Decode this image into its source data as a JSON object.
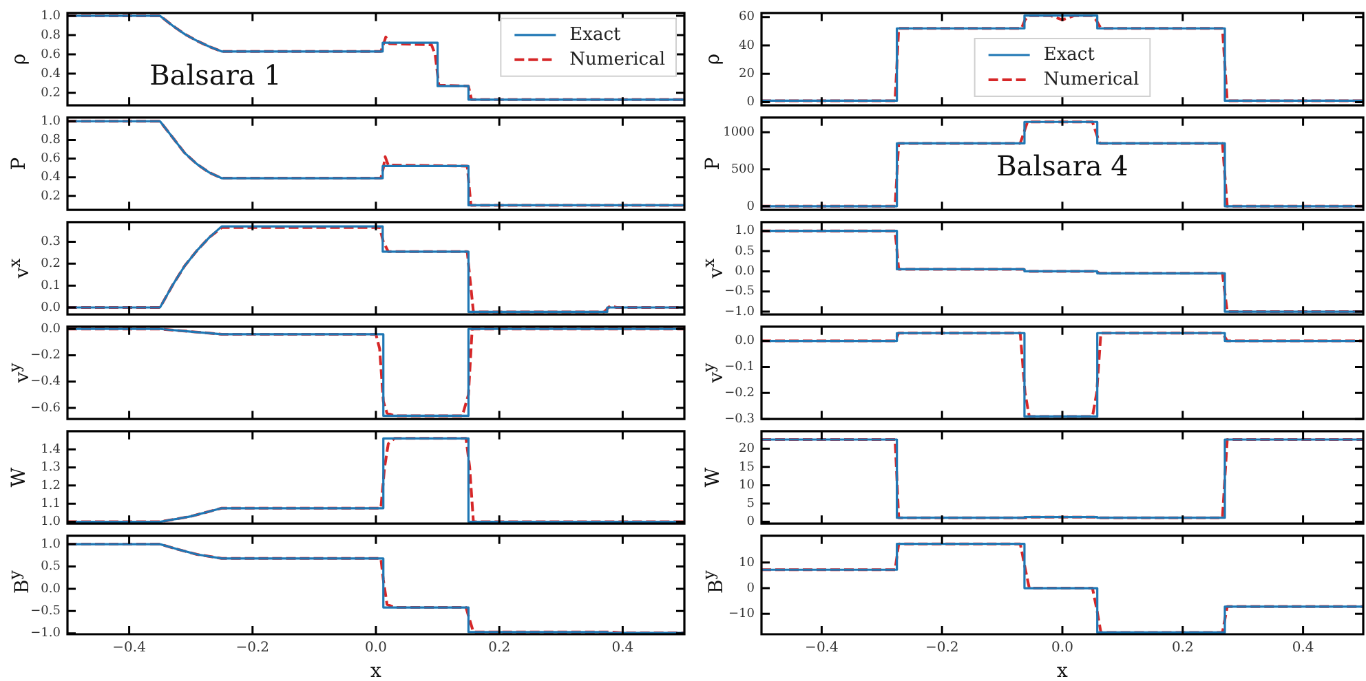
{
  "chart_data": [
    {
      "type": "line",
      "ylabel": "ρ",
      "annotations": [
        "Balsara 1"
      ],
      "legend": "top right",
      "tick_labels": "y",
      "xlim": [
        -0.5,
        0.5
      ],
      "xticks": [
        {
          "value": -0.4,
          "label": null
        },
        {
          "value": -0.2,
          "label": null
        },
        {
          "value": 0,
          "label": null
        },
        {
          "value": 0.2,
          "label": null
        },
        {
          "value": 0.4,
          "label": null
        }
      ],
      "ylim": [
        0.07,
        1.03
      ],
      "yticks": [
        0.2,
        0.4,
        0.6,
        0.8,
        {
          "value": 1,
          "label": "1.0"
        }
      ],
      "series": [
        {
          "name": "Exact",
          "color": "#1f77b4",
          "line_style": "solid",
          "x": [
            -0.5,
            -0.35,
            -0.33,
            -0.31,
            -0.29,
            -0.27,
            -0.25,
            0.011,
            0.011,
            0.1,
            0.1,
            0.15,
            0.15,
            0.5
          ],
          "values": [
            1,
            1,
            0.9,
            0.81,
            0.74,
            0.68,
            0.63,
            0.63,
            0.72,
            0.72,
            0.27,
            0.27,
            0.13,
            0.13
          ]
        },
        {
          "name": "Numerical",
          "color": "#d62728",
          "line_style": "dashed",
          "x": [
            -0.5,
            -0.35,
            -0.33,
            -0.31,
            -0.29,
            -0.27,
            -0.25,
            0.008,
            0.012,
            0.016,
            0.022,
            0.09,
            0.096,
            0.102,
            0.15,
            0.155,
            0.5
          ],
          "values": [
            1,
            1,
            0.9,
            0.81,
            0.74,
            0.68,
            0.63,
            0.63,
            0.7,
            0.78,
            0.71,
            0.7,
            0.6,
            0.28,
            0.27,
            0.13,
            0.13
          ]
        }
      ]
    },
    {
      "type": "line",
      "ylabel": "P",
      "tick_labels": "y",
      "xlim": [
        -0.5,
        0.5
      ],
      "xticks": [
        {
          "value": -0.4,
          "label": null
        },
        {
          "value": -0.2,
          "label": null
        },
        {
          "value": 0,
          "label": null
        },
        {
          "value": 0.2,
          "label": null
        },
        {
          "value": 0.4,
          "label": null
        }
      ],
      "ylim": [
        0.05,
        1.04
      ],
      "yticks": [
        0.2,
        0.4,
        0.6,
        0.8,
        {
          "value": 1,
          "label": "1.0"
        }
      ],
      "series": [
        {
          "color": "#1f77b4",
          "line_style": "solid",
          "x": [
            -0.5,
            -0.35,
            -0.33,
            -0.31,
            -0.29,
            -0.27,
            -0.25,
            0.011,
            0.011,
            0.15,
            0.15,
            0.5
          ],
          "values": [
            1,
            1,
            0.83,
            0.66,
            0.54,
            0.45,
            0.39,
            0.39,
            0.52,
            0.52,
            0.1,
            0.1
          ]
        },
        {
          "color": "#d62728",
          "line_style": "dashed",
          "x": [
            -0.5,
            -0.35,
            -0.33,
            -0.31,
            -0.29,
            -0.27,
            -0.25,
            0.008,
            0.012,
            0.015,
            0.02,
            0.148,
            0.154,
            0.5
          ],
          "values": [
            1,
            1,
            0.83,
            0.66,
            0.54,
            0.45,
            0.39,
            0.39,
            0.5,
            0.62,
            0.53,
            0.52,
            0.1,
            0.1
          ]
        }
      ]
    },
    {
      "type": "line",
      "ylabel": "v$^{x}$",
      "tick_labels": "y",
      "xlim": [
        -0.5,
        0.5
      ],
      "xticks": [
        {
          "value": -0.4,
          "label": null
        },
        {
          "value": -0.2,
          "label": null
        },
        {
          "value": 0,
          "label": null
        },
        {
          "value": 0.2,
          "label": null
        },
        {
          "value": 0.4,
          "label": null
        }
      ],
      "ylim": [
        -0.032,
        0.39
      ],
      "yticks": [
        {
          "value": 0,
          "label": "0.0"
        },
        0.1,
        0.2,
        0.3
      ],
      "series": [
        {
          "color": "#1f77b4",
          "line_style": "solid",
          "x": [
            -0.5,
            -0.35,
            -0.33,
            -0.31,
            -0.29,
            -0.27,
            -0.25,
            0.011,
            0.011,
            0.15,
            0.15,
            0.375,
            0.375,
            0.5
          ],
          "values": [
            0,
            0,
            0.1,
            0.19,
            0.26,
            0.32,
            0.37,
            0.37,
            0.255,
            0.255,
            -0.02,
            -0.02,
            0,
            0
          ]
        },
        {
          "color": "#d62728",
          "line_style": "dashed",
          "x": [
            -0.5,
            -0.35,
            -0.33,
            -0.31,
            -0.29,
            -0.27,
            -0.25,
            0.006,
            0.012,
            0.02,
            0.148,
            0.158,
            0.37,
            0.38,
            0.39,
            0.5
          ],
          "values": [
            0,
            0,
            0.1,
            0.19,
            0.26,
            0.32,
            0.365,
            0.365,
            0.3,
            0.255,
            0.255,
            -0.02,
            -0.02,
            0.008,
            0,
            0
          ]
        }
      ]
    },
    {
      "type": "line",
      "ylabel": "v$^{y}$",
      "tick_labels": "y",
      "xlim": [
        -0.5,
        0.5
      ],
      "xticks": [
        {
          "value": -0.4,
          "label": null
        },
        {
          "value": -0.2,
          "label": null
        },
        {
          "value": 0,
          "label": null
        },
        {
          "value": 0.2,
          "label": null
        },
        {
          "value": 0.4,
          "label": null
        }
      ],
      "ylim": [
        -0.685,
        0.018
      ],
      "yticks": [
        {
          "value": -0.6,
          "label": "−0.6"
        },
        {
          "value": -0.4,
          "label": "−0.4"
        },
        {
          "value": -0.2,
          "label": "−0.2"
        },
        {
          "value": 0,
          "label": "0.0"
        }
      ],
      "series": [
        {
          "color": "#1f77b4",
          "line_style": "solid",
          "x": [
            -0.5,
            -0.35,
            -0.3,
            -0.25,
            0.012,
            0.012,
            0.15,
            0.15,
            0.5
          ],
          "values": [
            0,
            0,
            -0.02,
            -0.04,
            -0.04,
            -0.66,
            -0.66,
            0,
            0
          ]
        },
        {
          "color": "#d62728",
          "line_style": "dashed",
          "x": [
            -0.5,
            -0.35,
            -0.3,
            -0.25,
            0.0,
            0.006,
            0.012,
            0.018,
            0.03,
            0.14,
            0.15,
            0.156,
            0.5
          ],
          "values": [
            0,
            0,
            -0.02,
            -0.04,
            -0.04,
            -0.15,
            -0.55,
            -0.64,
            -0.66,
            -0.66,
            -0.5,
            0,
            0
          ]
        }
      ]
    },
    {
      "type": "line",
      "ylabel": "W",
      "tick_labels": "y",
      "xlim": [
        -0.5,
        0.5
      ],
      "xticks": [
        {
          "value": -0.4,
          "label": null
        },
        {
          "value": -0.2,
          "label": null
        },
        {
          "value": 0,
          "label": null
        },
        {
          "value": 0.2,
          "label": null
        },
        {
          "value": 0.4,
          "label": null
        }
      ],
      "ylim": [
        0.99,
        1.5
      ],
      "yticks": [
        {
          "value": 1,
          "label": "1.0"
        },
        1.1,
        1.2,
        1.3,
        1.4
      ],
      "series": [
        {
          "color": "#1f77b4",
          "line_style": "solid",
          "x": [
            -0.5,
            -0.35,
            -0.3,
            -0.25,
            0.012,
            0.012,
            0.15,
            0.15,
            0.5
          ],
          "values": [
            1,
            1,
            1.03,
            1.075,
            1.075,
            1.46,
            1.46,
            1,
            1
          ]
        },
        {
          "color": "#d62728",
          "line_style": "dashed",
          "x": [
            -0.5,
            -0.35,
            -0.3,
            -0.25,
            0.008,
            0.014,
            0.02,
            0.03,
            0.146,
            0.152,
            0.158,
            0.5
          ],
          "values": [
            1,
            1,
            1.03,
            1.075,
            1.075,
            1.3,
            1.43,
            1.46,
            1.46,
            1.3,
            1,
            1
          ]
        }
      ]
    },
    {
      "type": "line",
      "ylabel": "B$^{y}$",
      "xlabel": "x",
      "xlim": [
        -0.5,
        0.5
      ],
      "xticks": [
        {
          "value": -0.4,
          "label": "−0.4"
        },
        {
          "value": -0.2,
          "label": "−0.2"
        },
        {
          "value": 0,
          "label": "0.0"
        },
        {
          "value": 0.2,
          "label": "0.2"
        },
        {
          "value": 0.4,
          "label": "0.4"
        }
      ],
      "ylim": [
        -1.02,
        1.19
      ],
      "yticks": [
        {
          "value": -1,
          "label": "−1.0"
        },
        {
          "value": -0.5,
          "label": "−0.5"
        },
        {
          "value": 0,
          "label": "0.0"
        },
        0.5,
        {
          "value": 1,
          "label": "1.0"
        }
      ],
      "series": [
        {
          "color": "#1f77b4",
          "line_style": "solid",
          "x": [
            -0.5,
            -0.35,
            -0.32,
            -0.29,
            -0.25,
            0.012,
            0.012,
            0.15,
            0.15,
            0.375,
            0.375,
            0.5
          ],
          "values": [
            1,
            1,
            0.88,
            0.77,
            0.68,
            0.68,
            -0.42,
            -0.42,
            -0.97,
            -0.97,
            -0.99,
            -0.99
          ]
        },
        {
          "color": "#d62728",
          "line_style": "dashed",
          "x": [
            -0.5,
            -0.35,
            -0.32,
            -0.29,
            -0.25,
            0.008,
            0.012,
            0.018,
            0.03,
            0.146,
            0.152,
            0.158,
            0.38,
            0.4,
            0.5
          ],
          "values": [
            1,
            1,
            0.88,
            0.77,
            0.68,
            0.68,
            0.2,
            -0.35,
            -0.42,
            -0.42,
            -0.7,
            -0.97,
            -0.97,
            -0.99,
            -0.99
          ]
        }
      ]
    },
    {
      "type": "line",
      "ylabel": "ρ",
      "legend": "center",
      "tick_labels": "y",
      "xlim": [
        -0.5,
        0.5
      ],
      "xticks": [
        {
          "value": -0.4,
          "label": null
        },
        {
          "value": -0.2,
          "label": null
        },
        {
          "value": 0,
          "label": null
        },
        {
          "value": 0.2,
          "label": null
        },
        {
          "value": 0.4,
          "label": null
        }
      ],
      "ylim": [
        -2.3,
        62.9
      ],
      "yticks": [
        0,
        20,
        40,
        60
      ],
      "series": [
        {
          "name": "Exact",
          "color": "#1f77b4",
          "line_style": "solid",
          "x": [
            -0.5,
            -0.275,
            -0.275,
            -0.063,
            -0.063,
            0.058,
            0.058,
            0.27,
            0.27,
            0.5
          ],
          "values": [
            1,
            1,
            52,
            52,
            61,
            61,
            52,
            52,
            1,
            1
          ]
        },
        {
          "name": "Numerical",
          "color": "#d62728",
          "line_style": "dashed",
          "x": [
            -0.5,
            -0.278,
            -0.272,
            -0.068,
            -0.062,
            -0.055,
            -0.02,
            0,
            0.02,
            0.05,
            0.056,
            0.064,
            0.266,
            0.274,
            0.5
          ],
          "values": [
            1,
            1,
            52,
            52,
            58,
            61,
            61,
            58,
            61,
            61,
            58,
            52,
            52,
            1,
            1
          ]
        }
      ]
    },
    {
      "type": "line",
      "ylabel": "P",
      "annotations": [
        "Balsara 4"
      ],
      "tick_labels": "y",
      "xlim": [
        -0.5,
        0.5
      ],
      "xticks": [
        {
          "value": -0.4,
          "label": null
        },
        {
          "value": -0.2,
          "label": null
        },
        {
          "value": 0,
          "label": null
        },
        {
          "value": 0.2,
          "label": null
        },
        {
          "value": 0.4,
          "label": null
        }
      ],
      "ylim": [
        -50,
        1200
      ],
      "yticks": [
        0,
        500,
        1000
      ],
      "series": [
        {
          "color": "#1f77b4",
          "line_style": "solid",
          "x": [
            -0.5,
            -0.275,
            -0.275,
            -0.063,
            -0.063,
            0.058,
            0.058,
            0.27,
            0.27,
            0.5
          ],
          "values": [
            0,
            0,
            850,
            850,
            1140,
            1140,
            850,
            850,
            0,
            0
          ]
        },
        {
          "color": "#d62728",
          "line_style": "dashed",
          "x": [
            -0.5,
            -0.278,
            -0.272,
            -0.07,
            -0.058,
            0.05,
            0.062,
            0.266,
            0.274,
            0.5
          ],
          "values": [
            0,
            0,
            850,
            850,
            1140,
            1140,
            850,
            850,
            0,
            0
          ]
        }
      ]
    },
    {
      "type": "line",
      "ylabel": "v$^{x}$",
      "tick_labels": "y",
      "xlim": [
        -0.5,
        0.5
      ],
      "xticks": [
        {
          "value": -0.4,
          "label": null
        },
        {
          "value": -0.2,
          "label": null
        },
        {
          "value": 0,
          "label": null
        },
        {
          "value": 0.2,
          "label": null
        },
        {
          "value": 0.4,
          "label": null
        }
      ],
      "ylim": [
        -1.07,
        1.22
      ],
      "yticks": [
        {
          "value": -1,
          "label": "−1.0"
        },
        {
          "value": -0.5,
          "label": "−0.5"
        },
        {
          "value": 0,
          "label": "0.0"
        },
        0.5,
        {
          "value": 1,
          "label": "1.0"
        }
      ],
      "series": [
        {
          "color": "#1f77b4",
          "line_style": "solid",
          "x": [
            -0.5,
            -0.275,
            -0.275,
            -0.063,
            -0.063,
            0.058,
            0.058,
            0.27,
            0.27,
            0.5
          ],
          "values": [
            1,
            1,
            0.05,
            0.05,
            0,
            0,
            -0.05,
            -0.05,
            -1,
            -1
          ]
        },
        {
          "color": "#d62728",
          "line_style": "dashed",
          "x": [
            -0.5,
            -0.278,
            -0.272,
            -0.065,
            -0.058,
            0.055,
            0.062,
            0.266,
            0.274,
            0.5
          ],
          "values": [
            1,
            1,
            0.05,
            0.05,
            0,
            0,
            -0.05,
            -0.05,
            -1,
            -1
          ]
        }
      ]
    },
    {
      "type": "line",
      "ylabel": "v$^{y}$",
      "tick_labels": "y",
      "xlim": [
        -0.5,
        0.5
      ],
      "xticks": [
        {
          "value": -0.4,
          "label": null
        },
        {
          "value": -0.2,
          "label": null
        },
        {
          "value": 0,
          "label": null
        },
        {
          "value": 0.2,
          "label": null
        },
        {
          "value": 0.4,
          "label": null
        }
      ],
      "ylim": [
        -0.3,
        0.055
      ],
      "yticks": [
        {
          "value": -0.3,
          "label": "−0.3"
        },
        {
          "value": -0.2,
          "label": "−0.2"
        },
        {
          "value": -0.1,
          "label": "−0.1"
        },
        {
          "value": 0,
          "label": "0.0"
        }
      ],
      "series": [
        {
          "color": "#1f77b4",
          "line_style": "solid",
          "x": [
            -0.5,
            -0.275,
            -0.275,
            -0.063,
            -0.063,
            0.058,
            0.058,
            0.27,
            0.27,
            0.5
          ],
          "values": [
            0,
            0,
            0.03,
            0.03,
            -0.29,
            -0.29,
            0.03,
            0.03,
            0,
            0
          ]
        },
        {
          "color": "#d62728",
          "line_style": "dashed",
          "x": [
            -0.5,
            -0.278,
            -0.272,
            -0.07,
            -0.062,
            -0.055,
            0.05,
            0.057,
            0.064,
            0.266,
            0.274,
            0.5
          ],
          "values": [
            0,
            0,
            0.03,
            0.03,
            -0.2,
            -0.29,
            -0.29,
            -0.2,
            0.03,
            0.03,
            0,
            0
          ]
        }
      ]
    },
    {
      "type": "line",
      "ylabel": "W",
      "tick_labels": "y",
      "xlim": [
        -0.5,
        0.5
      ],
      "xticks": [
        {
          "value": -0.4,
          "label": null
        },
        {
          "value": -0.2,
          "label": null
        },
        {
          "value": 0,
          "label": null
        },
        {
          "value": 0.2,
          "label": null
        },
        {
          "value": 0.4,
          "label": null
        }
      ],
      "ylim": [
        -0.5,
        24.8
      ],
      "yticks": [
        0,
        5,
        10,
        15,
        20
      ],
      "series": [
        {
          "color": "#1f77b4",
          "line_style": "solid",
          "x": [
            -0.5,
            -0.275,
            -0.275,
            -0.063,
            -0.063,
            0.058,
            0.058,
            0.27,
            0.27,
            0.5
          ],
          "values": [
            22.5,
            22.5,
            1.1,
            1.1,
            1.3,
            1.3,
            1.1,
            1.1,
            22.5,
            22.5
          ]
        },
        {
          "color": "#d62728",
          "line_style": "dashed",
          "x": [
            -0.5,
            -0.278,
            -0.272,
            -0.06,
            -0.055,
            0.052,
            0.06,
            0.266,
            0.274,
            0.5
          ],
          "values": [
            22.5,
            22.5,
            1.1,
            1.1,
            1.3,
            1.3,
            1.1,
            1.1,
            22.5,
            22.5
          ]
        }
      ]
    },
    {
      "type": "line",
      "ylabel": "B$^{y}$",
      "xlabel": "x",
      "xlim": [
        -0.5,
        0.5
      ],
      "xticks": [
        {
          "value": -0.4,
          "label": "−0.4"
        },
        {
          "value": -0.2,
          "label": "−0.2"
        },
        {
          "value": 0,
          "label": "0.0"
        },
        {
          "value": 0.2,
          "label": "0.2"
        },
        {
          "value": 0.4,
          "label": "0.4"
        }
      ],
      "ylim": [
        -18,
        20.5
      ],
      "yticks": [
        {
          "value": -10,
          "label": "−10"
        },
        0,
        10
      ],
      "series": [
        {
          "color": "#1f77b4",
          "line_style": "solid",
          "x": [
            -0.5,
            -0.275,
            -0.275,
            -0.063,
            -0.063,
            0.058,
            0.058,
            0.27,
            0.27,
            0.5
          ],
          "values": [
            7.2,
            7.2,
            17.3,
            17.3,
            0,
            0,
            -17.3,
            -17.3,
            -7.2,
            -7.2
          ]
        },
        {
          "color": "#d62728",
          "line_style": "dashed",
          "x": [
            -0.5,
            -0.278,
            -0.272,
            -0.07,
            -0.062,
            -0.055,
            0.05,
            0.057,
            0.064,
            0.266,
            0.274,
            0.5
          ],
          "values": [
            7.2,
            7.2,
            17.3,
            17.3,
            8,
            0,
            0,
            -8,
            -17.3,
            -17.3,
            -7.2,
            -7.2
          ]
        }
      ]
    }
  ]
}
